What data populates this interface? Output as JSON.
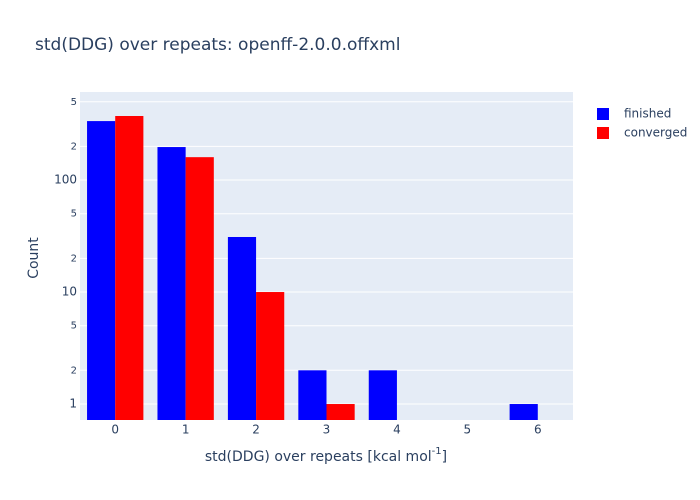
{
  "chart_data": {
    "type": "bar",
    "title": "std(DDG) over repeats: openff-2.0.0.offxml",
    "xlabel": [
      "std(DDG) over repeats [kcal mol",
      "-1",
      "]"
    ],
    "ylabel": "Count",
    "x": [
      0,
      1,
      2,
      3,
      4,
      5,
      6
    ],
    "xlim": [
      -0.5,
      6.5
    ],
    "xticks": [
      0,
      1,
      2,
      3,
      4,
      5,
      6
    ],
    "ylog": true,
    "ylim": [
      0.72,
      611
    ],
    "yticks": [
      1,
      2,
      5,
      10,
      {
        "value": 20,
        "label": "2"
      },
      {
        "value": 50,
        "label": "5"
      },
      100,
      {
        "value": 200,
        "label": "2"
      },
      {
        "value": 500,
        "label": "5"
      }
    ],
    "grid": true,
    "legend": "outside-right",
    "series": [
      {
        "name": "finished",
        "color": "#0000ff",
        "values": [
          336,
          197,
          31,
          2,
          2,
          null,
          1
        ]
      },
      {
        "name": "converged",
        "color": "#ff0000",
        "values": [
          373,
          160,
          10,
          1,
          null,
          null,
          null
        ]
      }
    ]
  }
}
